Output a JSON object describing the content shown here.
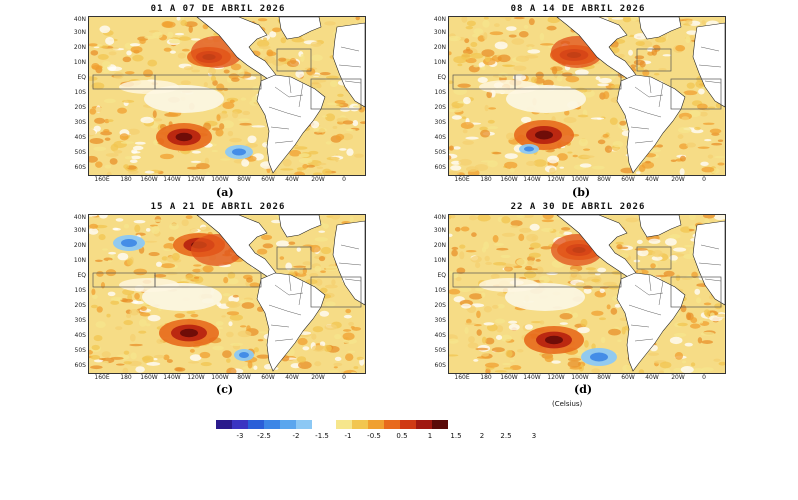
{
  "panels": [
    {
      "title": "01 A 07 DE ABRIL 2026",
      "letter": "(a)"
    },
    {
      "title": "08 A 14 DE ABRIL 2026",
      "letter": "(b)"
    },
    {
      "title": "15 A 21 DE ABRIL 2026",
      "letter": "(c)"
    },
    {
      "title": "22 A 30 DE ABRIL 2026",
      "letter": "(d)"
    }
  ],
  "lat_labels": [
    "40N",
    "30N",
    "20N",
    "10N",
    "EQ",
    "10S",
    "20S",
    "30S",
    "40S",
    "50S",
    "60S"
  ],
  "lon_labels": [
    "160E",
    "180",
    "160W",
    "140W",
    "120W",
    "100W",
    "80W",
    "60W",
    "40W",
    "20W",
    "0"
  ],
  "units": "(Celsius)",
  "colorbar": {
    "ticks": [
      "-3",
      "-2.5",
      "-2",
      "-1.5",
      "-1",
      "-0.5",
      "0.5",
      "1",
      "1.5",
      "2",
      "2.5",
      "3"
    ],
    "colors": [
      "#2a1a8c",
      "#3a34c2",
      "#2a5fd8",
      "#3c86e6",
      "#5aa6ee",
      "#8cc8f4",
      "#ffffff",
      "#f6e68c",
      "#f2c650",
      "#f0a030",
      "#e86a1c",
      "#d03a14",
      "#a01810",
      "#5a0a08"
    ]
  }
}
